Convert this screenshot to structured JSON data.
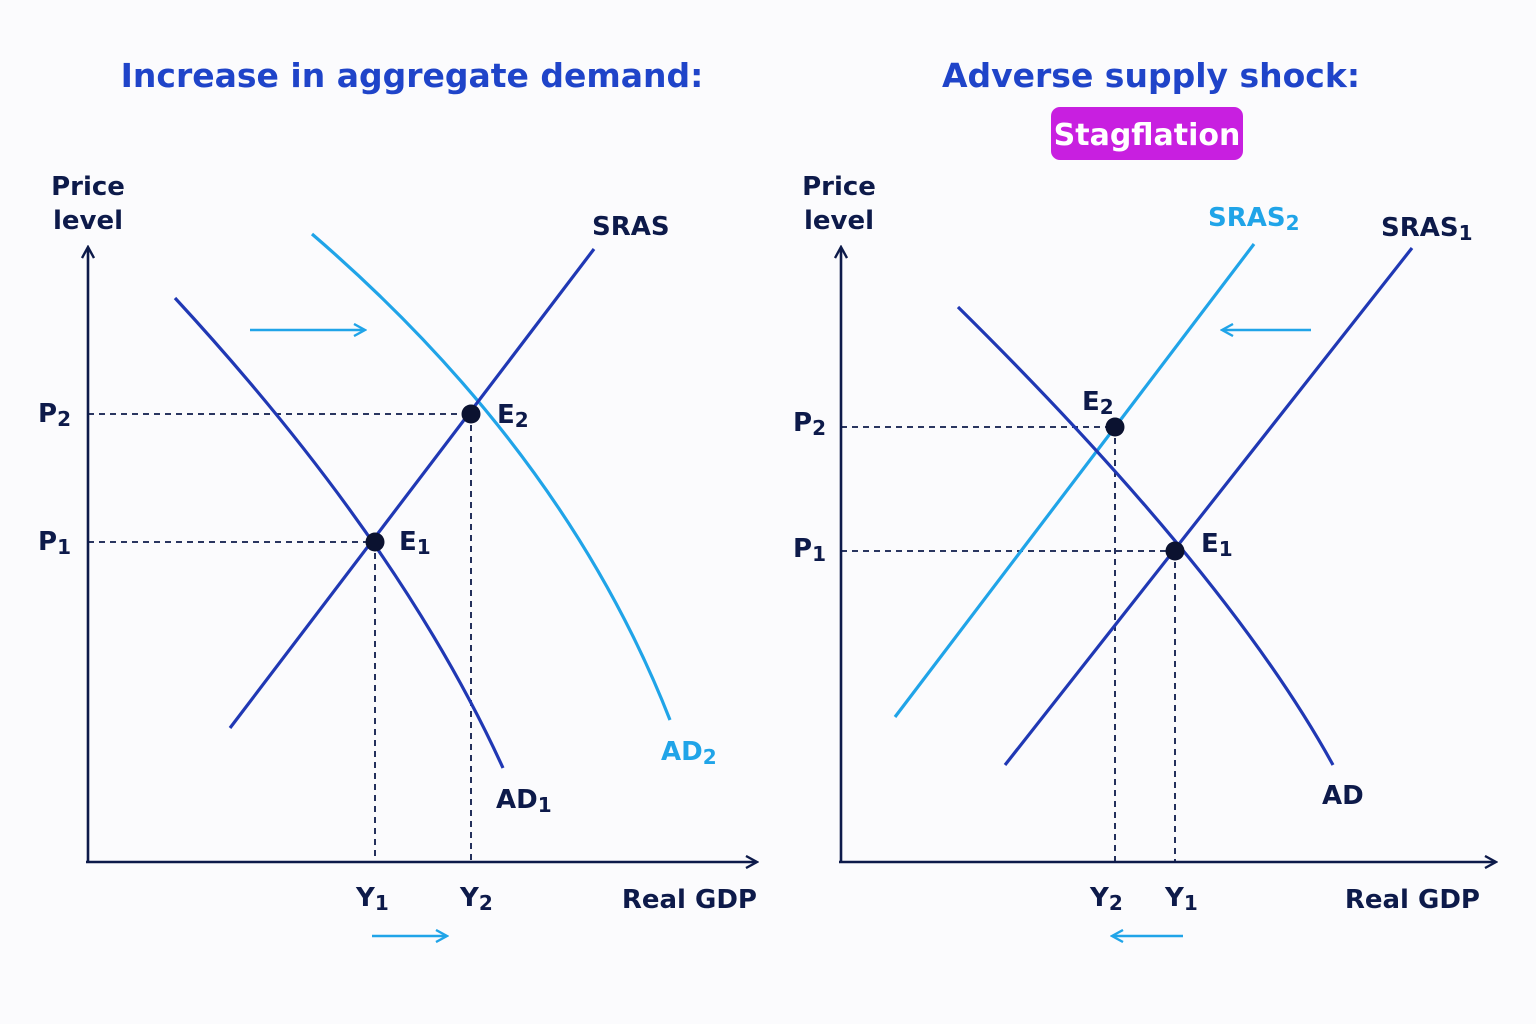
{
  "colors": {
    "background": "#fbfbfd",
    "title": "#1f44c9",
    "axis": "#0d1a4a",
    "dark_curve": "#2038b4",
    "light_curve": "#20a4e8",
    "point": "#0b1230",
    "badge_bg": "#c81fe0",
    "badge_text": "#ffffff",
    "label": "#0d1a4a"
  },
  "left_panel": {
    "title": "Increase in aggregate demand:",
    "y_axis_label_line1": "Price",
    "y_axis_label_line2": "level",
    "x_axis_label": "Real GDP",
    "sras_label": "SRAS",
    "ad1_label": {
      "main": "AD",
      "sub": "1"
    },
    "ad2_label": {
      "main": "AD",
      "sub": "2"
    },
    "e1_label": {
      "main": "E",
      "sub": "1"
    },
    "e2_label": {
      "main": "E",
      "sub": "2"
    },
    "p1_label": {
      "main": "P",
      "sub": "1"
    },
    "p2_label": {
      "main": "P",
      "sub": "2"
    },
    "y1_label": {
      "main": "Y",
      "sub": "1"
    },
    "y2_label": {
      "main": "Y",
      "sub": "2"
    },
    "shift_direction": "right"
  },
  "right_panel": {
    "title": "Adverse supply shock:",
    "badge": "Stagflation",
    "y_axis_label_line1": "Price",
    "y_axis_label_line2": "level",
    "x_axis_label": "Real GDP",
    "sras1_label": {
      "main": "SRAS",
      "sub": "1"
    },
    "sras2_label": {
      "main": "SRAS",
      "sub": "2"
    },
    "ad_label": "AD",
    "e1_label": {
      "main": "E",
      "sub": "1"
    },
    "e2_label": {
      "main": "E",
      "sub": "2"
    },
    "p1_label": {
      "main": "P",
      "sub": "1"
    },
    "p2_label": {
      "main": "P",
      "sub": "2"
    },
    "y1_label": {
      "main": "Y",
      "sub": "1"
    },
    "y2_label": {
      "main": "Y",
      "sub": "2"
    },
    "shift_direction": "left"
  }
}
